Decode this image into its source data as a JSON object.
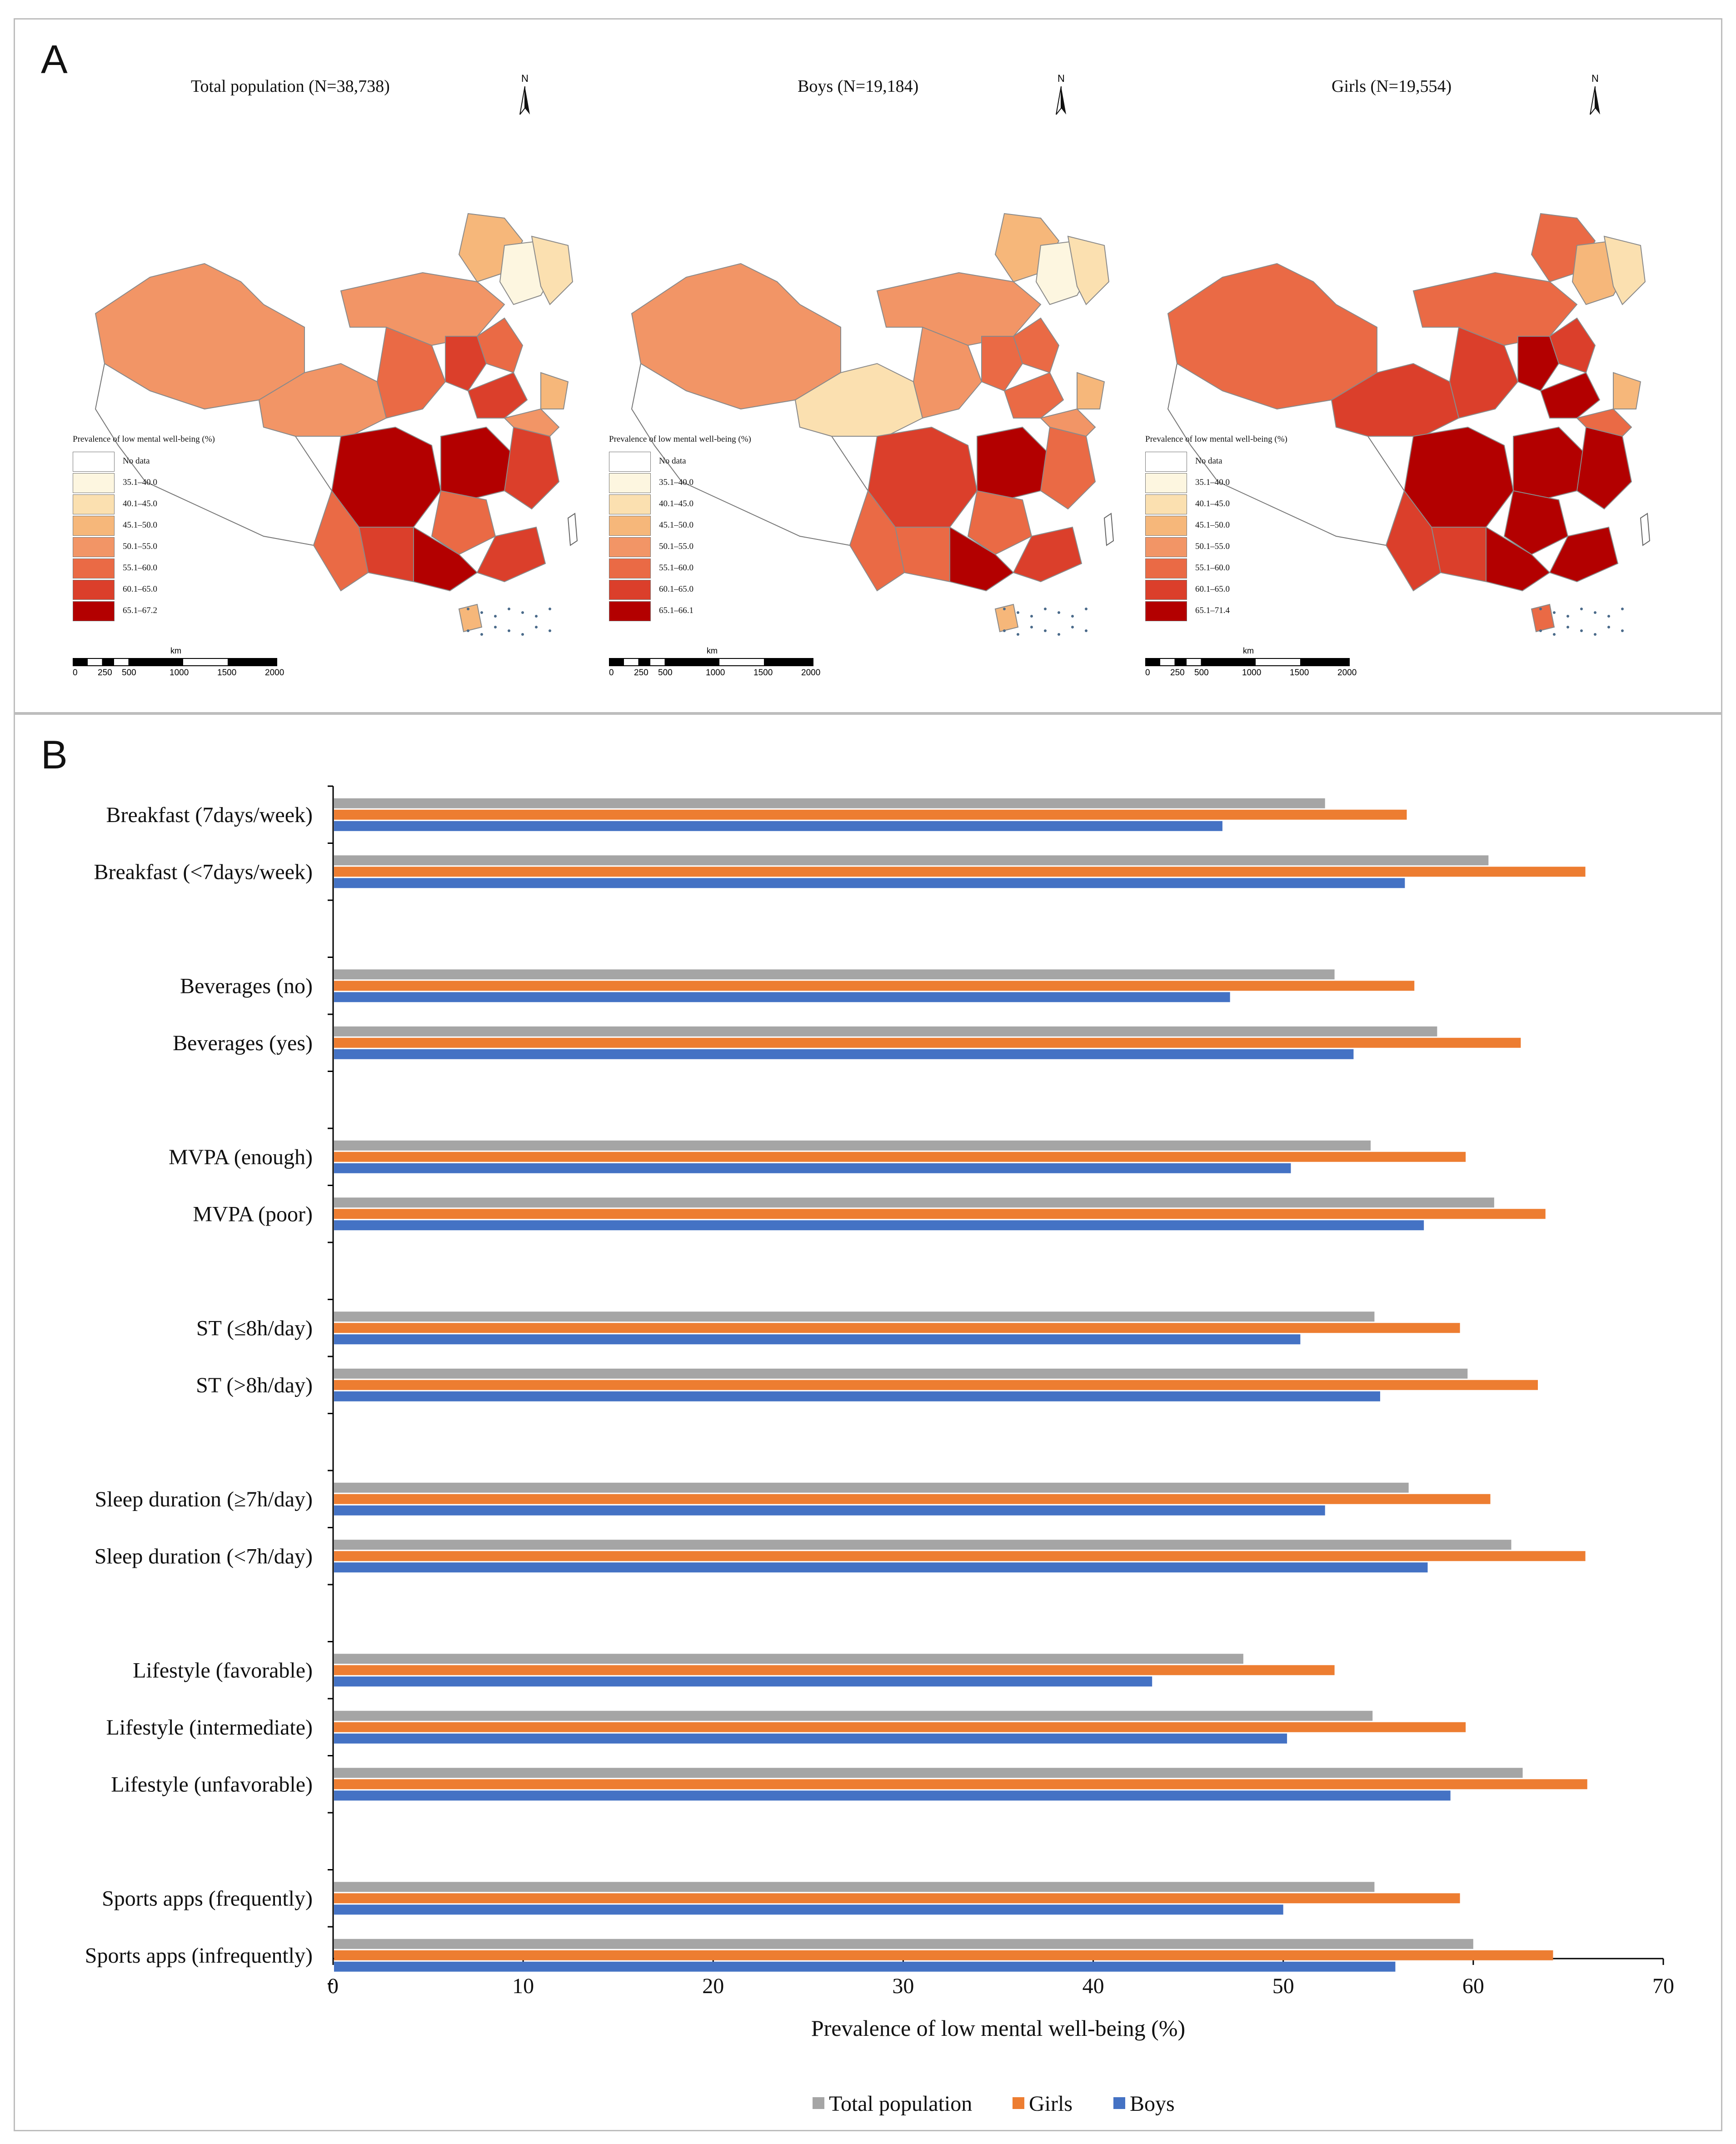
{
  "panel_labels": {
    "a": "A",
    "b": "B"
  },
  "maps": [
    {
      "title": "Total population (N=38,738)",
      "top_class": "65.1–67.2"
    },
    {
      "title": "Boys (N=19,184)",
      "top_class": "65.1–66.1"
    },
    {
      "title": "Girls (N=19,554)",
      "top_class": "65.1–71.4"
    }
  ],
  "map_legend": {
    "title": "Prevalence of low mental well-being (%)",
    "classes": [
      {
        "label": "No data",
        "color": "#ffffff"
      },
      {
        "label": "35.1–40.0",
        "color": "#fdf6e0"
      },
      {
        "label": "40.1–45.0",
        "color": "#fbe0b0"
      },
      {
        "label": "45.1–50.0",
        "color": "#f6b77a"
      },
      {
        "label": "50.1–55.0",
        "color": "#f29566"
      },
      {
        "label": "55.1–60.0",
        "color": "#ea6a45"
      },
      {
        "label": "60.1–65.0",
        "color": "#db3f2b"
      }
    ],
    "top_color": "#b30000"
  },
  "north_label": "N",
  "scale_bar": {
    "unit": "km",
    "ticks": [
      "0",
      "250",
      "500",
      "1000",
      "1500",
      "2000"
    ]
  },
  "chart_data": {
    "type": "bar",
    "orientation": "horizontal",
    "xlabel": "Prevalence of low mental well-being (%)",
    "xlim": [
      0,
      70
    ],
    "xticks": [
      0,
      10,
      20,
      30,
      40,
      50,
      60,
      70
    ],
    "categories": [
      "Breakfast (7days/week)",
      "Breakfast (<7days/week)",
      "Beverages (no)",
      "Beverages (yes)",
      "MVPA (enough)",
      "MVPA (poor)",
      "ST (≤8h/day)",
      "ST (>8h/day)",
      "Sleep duration (≥7h/day)",
      "Sleep duration (<7h/day)",
      "Lifestyle (favorable)",
      "Lifestyle (intermediate)",
      "Lifestyle (unfavorable)",
      "Sports apps (frequently)",
      "Sports apps (infrequently)"
    ],
    "series": [
      {
        "name": "Total population",
        "color": "#a5a5a5",
        "values": [
          52.2,
          60.8,
          52.7,
          58.1,
          54.6,
          61.1,
          54.8,
          59.7,
          56.6,
          62.0,
          47.9,
          54.7,
          62.6,
          54.8,
          60.0
        ]
      },
      {
        "name": "Girls",
        "color": "#ed7d31",
        "values": [
          56.5,
          65.9,
          56.9,
          62.5,
          59.6,
          63.8,
          59.3,
          63.4,
          60.9,
          65.9,
          52.7,
          59.6,
          66.0,
          59.3,
          64.2
        ]
      },
      {
        "name": "Boys",
        "color": "#4472c4",
        "values": [
          46.8,
          56.4,
          47.2,
          53.7,
          50.4,
          57.4,
          50.9,
          55.1,
          52.2,
          57.6,
          43.1,
          50.2,
          58.8,
          50.0,
          55.9
        ]
      }
    ],
    "legend_position": "bottom",
    "grid": false
  }
}
